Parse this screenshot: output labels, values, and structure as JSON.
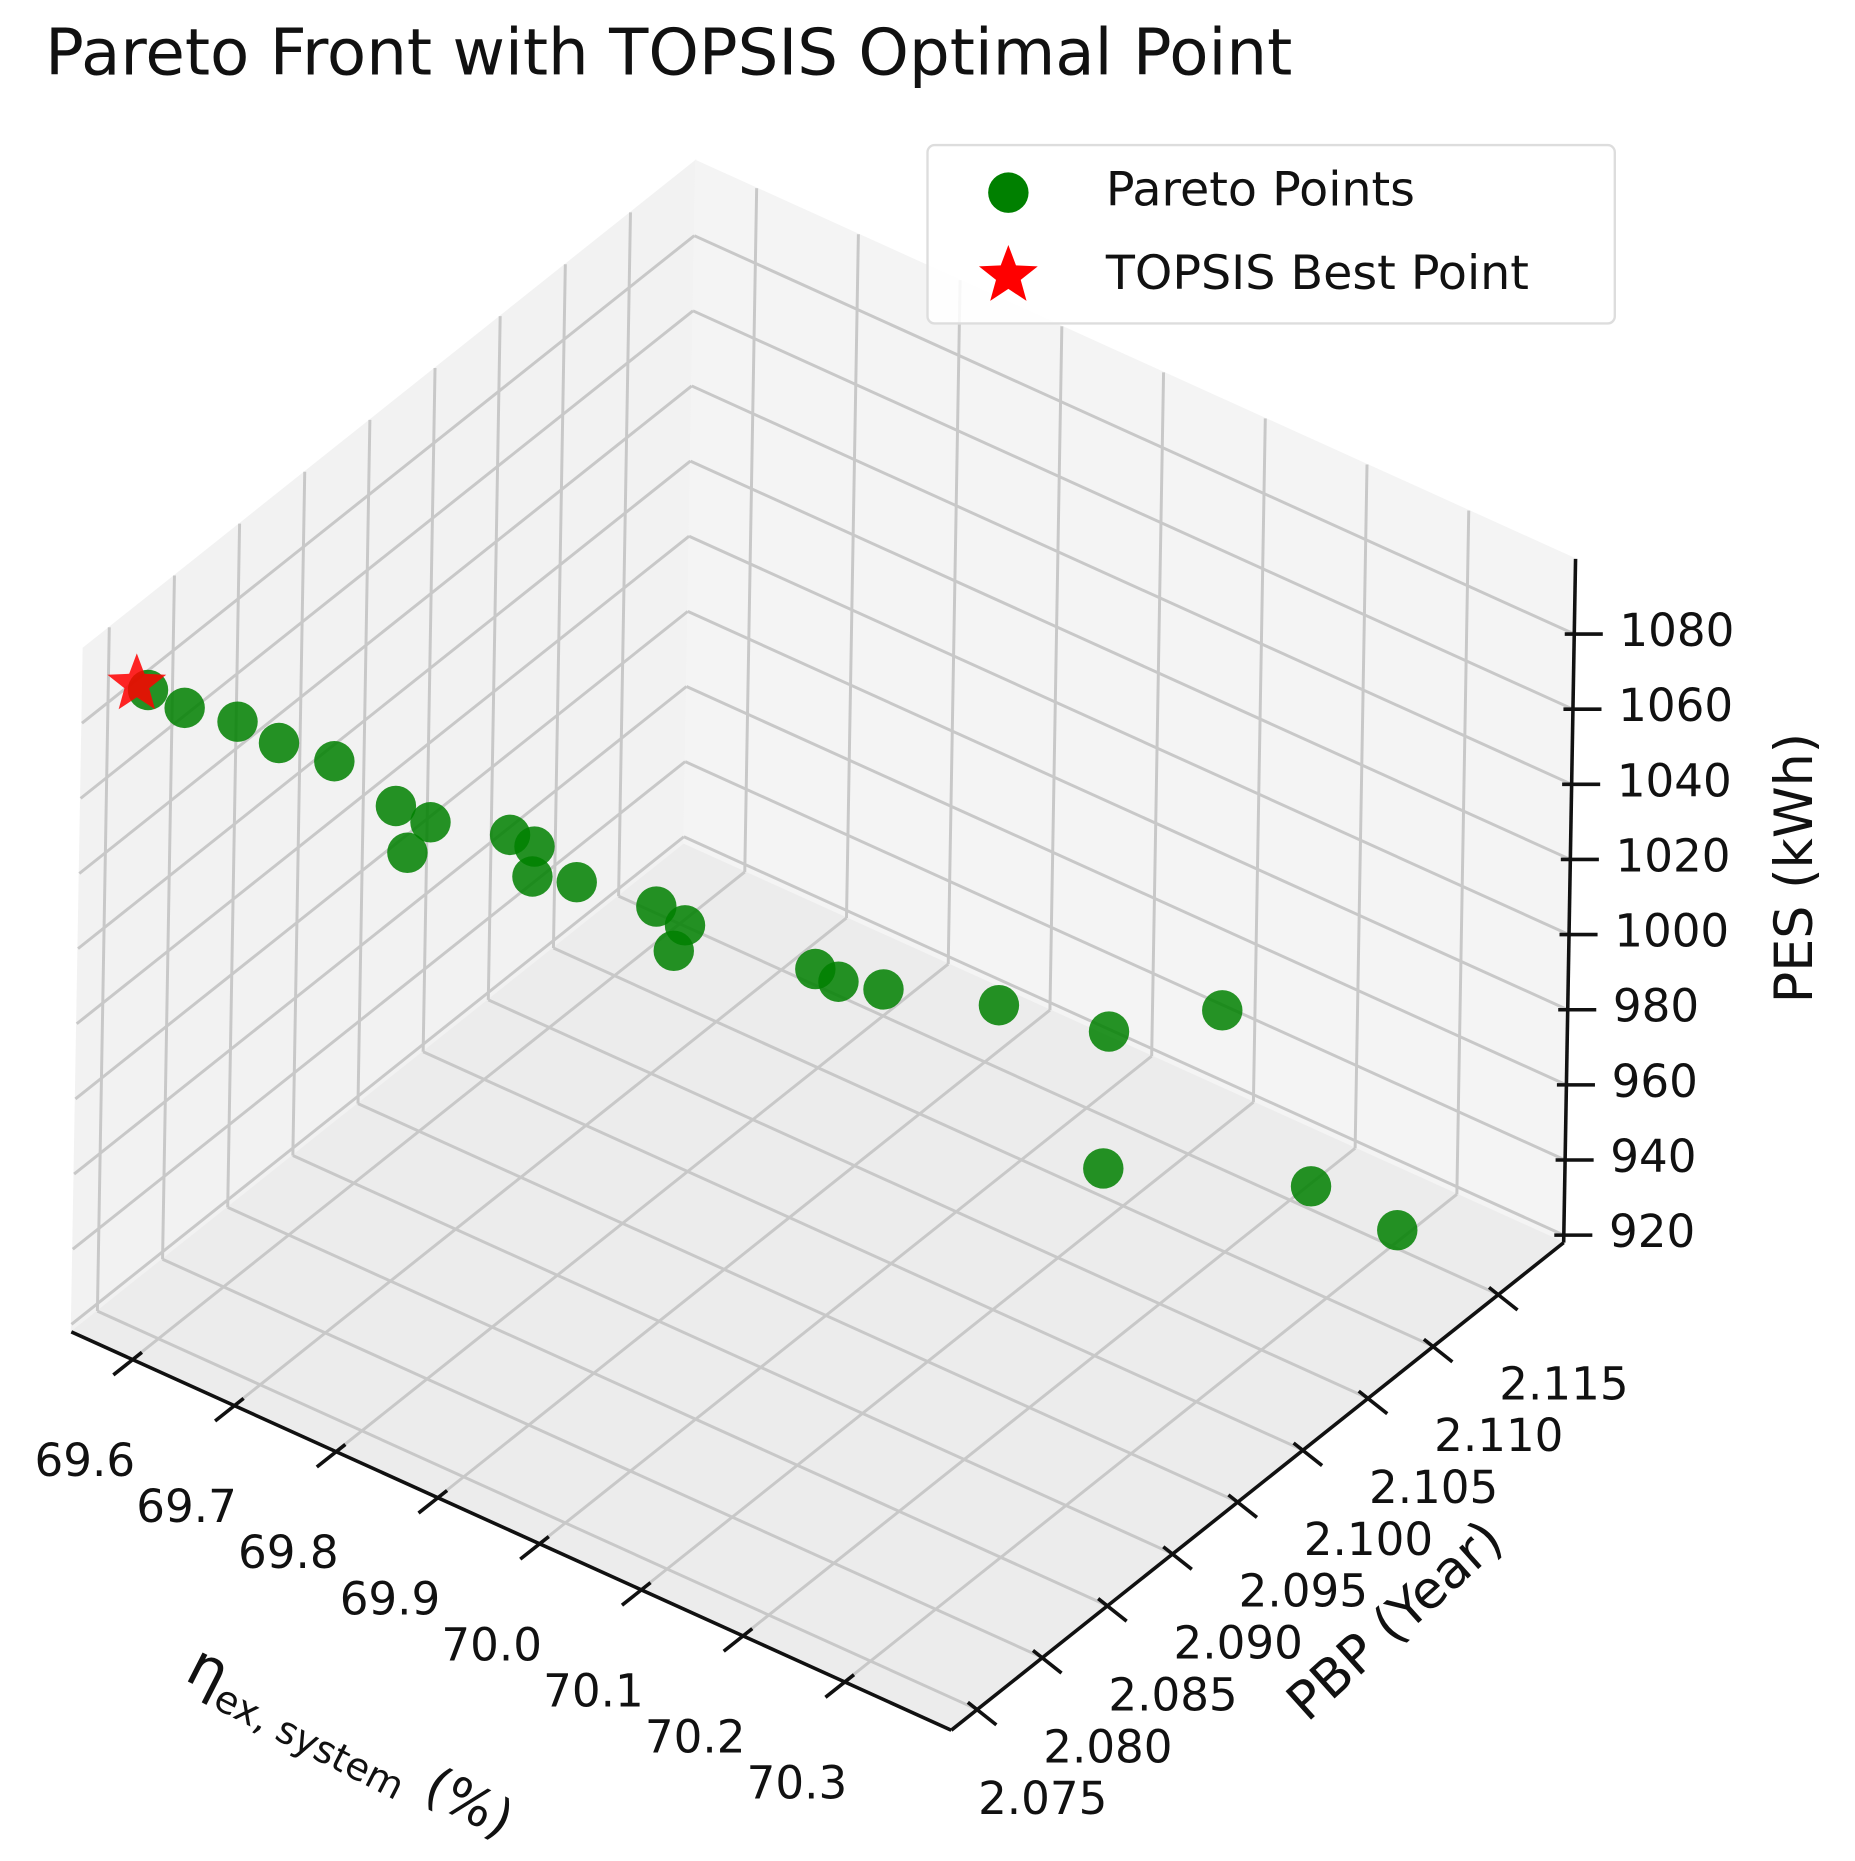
{
  "chart_data": {
    "type": "scatter3d",
    "title": "Pareto Front with TOPSIS Optimal Point",
    "xlabel": {
      "symbol": "η",
      "subscript": "ex, system",
      "unit": "(%)"
    },
    "ylabel": "PBP (Year)",
    "zlabel": "PES (kWh)",
    "xlim": [
      69.54,
      70.405
    ],
    "ylim": [
      2.073,
      2.12
    ],
    "zlim": [
      918,
      1100
    ],
    "xticks": [
      69.6,
      69.7,
      69.8,
      69.9,
      {
        "value": 70,
        "label": "70.0"
      },
      70.1,
      70.2,
      70.3
    ],
    "yticks": [
      2.075,
      {
        "value": 2.08,
        "label": "2.080"
      },
      2.085,
      {
        "value": 2.09,
        "label": "2.090"
      },
      2.095,
      {
        "value": 2.1,
        "label": "2.100"
      },
      2.105,
      {
        "value": 2.11,
        "label": "2.110"
      },
      2.115
    ],
    "zticks": [
      920,
      940,
      960,
      980,
      1000,
      1020,
      1040,
      1060,
      1080
    ],
    "grid": true,
    "legend": "upper right",
    "series": [
      {
        "name": "Pareto Points",
        "color": "green",
        "marker": "circle",
        "x": [
          69.55,
          69.571,
          69.599,
          69.626,
          69.659,
          69.701,
          69.725,
          69.708,
          69.774,
          69.788,
          69.789,
          69.816,
          69.869,
          69.886,
          69.883,
          69.97,
          69.984,
          70.013,
          70.087,
          70.161,
          70.231,
          70.159,
          70.298,
          70.344
        ],
        "y": [
          2.0773,
          2.0785,
          2.0804,
          2.0815,
          2.0832,
          2.0847,
          2.0855,
          2.0851,
          2.0878,
          2.0886,
          2.0884,
          2.0897,
          2.0917,
          2.0926,
          2.092,
          2.0961,
          2.0968,
          2.098,
          2.1011,
          2.1038,
          2.107,
          2.1037,
          2.1088,
          2.1119
        ],
        "z": [
          1078.2,
          1072.7,
          1067.2,
          1061.8,
          1056.3,
          1045.4,
          1041.8,
          1032.7,
          1038.1,
          1034.5,
          1027.2,
          1025.4,
          1019.9,
          1014.5,
          1009.0,
          1003.5,
          999.9,
          998.1,
          994.4,
          989.0,
          994.4,
          952.6,
          950.8,
          936.2
        ]
      },
      {
        "name": "TOPSIS Best Point",
        "color": "red",
        "marker": "star",
        "x": [
          69.549
        ],
        "y": [
          2.0765
        ],
        "z": [
          1081.8
        ]
      }
    ]
  }
}
